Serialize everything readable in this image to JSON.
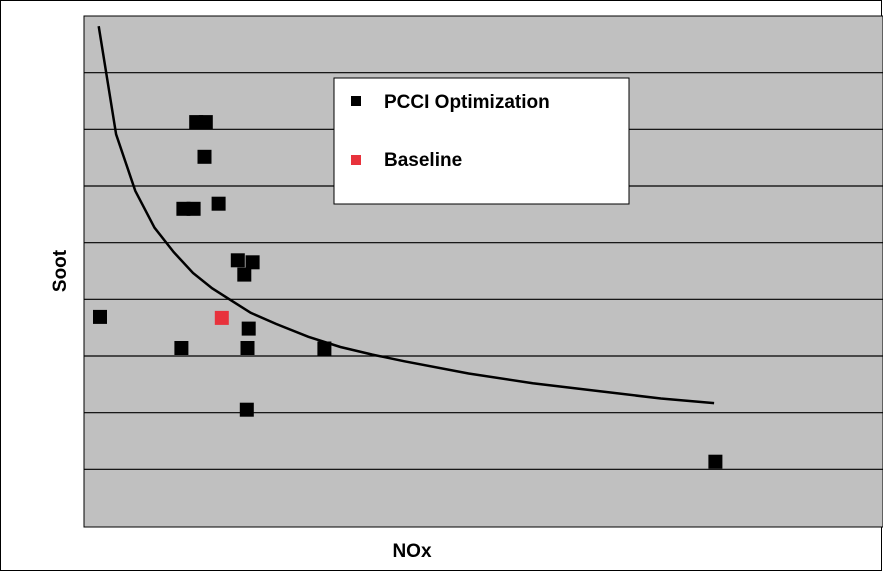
{
  "chart_data": {
    "type": "scatter",
    "title": "",
    "xlabel": "NOx",
    "ylabel": "Soot",
    "xlim": [
      0,
      100
    ],
    "ylim": [
      0,
      100
    ],
    "grid": "horizontal",
    "legend_position": "top-right",
    "colors": {
      "background": "#c0c0c0",
      "gridline": "#000000",
      "pcci": "#000000",
      "baseline": "#e8323c",
      "curve": "#000000"
    },
    "series": [
      {
        "name": "PCCI Optimization",
        "marker": "square",
        "color": "#000000",
        "points": [
          {
            "x": 17.5,
            "y": 79.2
          },
          {
            "x": 19.0,
            "y": 79.2
          },
          {
            "x": 18.8,
            "y": 72.4
          },
          {
            "x": 15.5,
            "y": 62.2
          },
          {
            "x": 17.1,
            "y": 62.2
          },
          {
            "x": 21.0,
            "y": 63.2
          },
          {
            "x": 24.0,
            "y": 52.1
          },
          {
            "x": 26.3,
            "y": 51.7
          },
          {
            "x": 25.0,
            "y": 49.3
          },
          {
            "x": 2.5,
            "y": 41.0
          },
          {
            "x": 25.7,
            "y": 38.7
          },
          {
            "x": 15.2,
            "y": 34.9
          },
          {
            "x": 25.5,
            "y": 34.9
          },
          {
            "x": 37.5,
            "y": 34.8
          },
          {
            "x": 25.4,
            "y": 22.8
          },
          {
            "x": 98.5,
            "y": 12.6
          }
        ]
      },
      {
        "name": "Baseline",
        "marker": "square",
        "color": "#e8323c",
        "points": [
          {
            "x": 21.5,
            "y": 40.8
          }
        ]
      }
    ],
    "trend_curve": {
      "x": [
        2.3,
        5,
        8,
        11,
        14,
        17,
        20,
        23,
        26,
        30,
        35,
        40,
        45,
        50,
        60,
        70,
        80,
        90,
        98.3
      ],
      "y": [
        98.0,
        76.8,
        65.7,
        58.5,
        53.7,
        49.6,
        46.6,
        44.2,
        41.8,
        39.6,
        37.1,
        35.1,
        33.6,
        32.3,
        29.9,
        28.0,
        26.5,
        25.0,
        24.1
      ]
    }
  },
  "legend": {
    "items": [
      {
        "label": "PCCI Optimization",
        "color": "#000000"
      },
      {
        "label": "Baseline",
        "color": "#e8323c"
      }
    ]
  }
}
